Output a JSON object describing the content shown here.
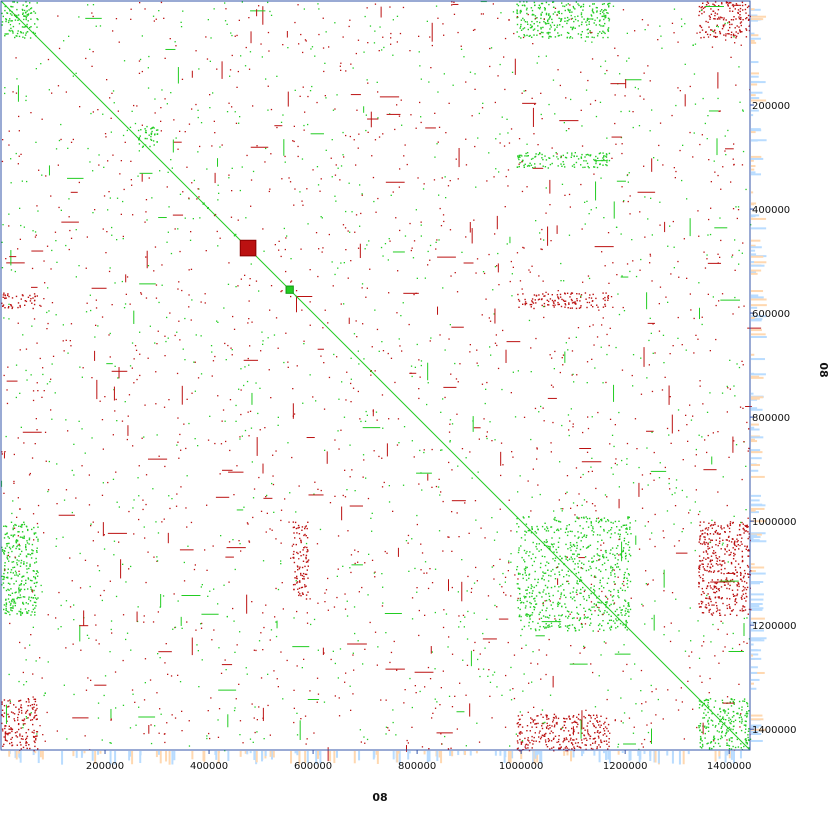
{
  "chart_data": {
    "type": "scatter",
    "title": "",
    "xlabel": "08",
    "ylabel": "08",
    "xlim": [
      0,
      1440000
    ],
    "ylim": [
      0,
      1440000
    ],
    "x_ticks": [
      "200000",
      "400000",
      "600000",
      "800000",
      "1000000",
      "1200000",
      "1400000"
    ],
    "y_ticks": [
      "200000",
      "400000",
      "600000",
      "800000",
      "1000000",
      "1200000",
      "1400000"
    ],
    "y_axis_side": "right",
    "y_inverted": true,
    "grid": false,
    "legend": "none",
    "colors": {
      "forward": "#22cc22",
      "reverse": "#bb1111",
      "coverage_blue": "#b9dcff",
      "coverage_orange": "#ffd8b0"
    },
    "highlight_blocks": [
      {
        "x": [
          460000,
          490000
        ],
        "y": [
          460000,
          490000
        ],
        "color": "reverse"
      },
      {
        "x": [
          548000,
          562000
        ],
        "y": [
          548000,
          562000
        ],
        "color": "forward"
      }
    ],
    "repeat_blocks": [
      {
        "x": [
          0,
          70000
        ],
        "y": [
          0,
          70000
        ],
        "color": "forward"
      },
      {
        "x": [
          1340000,
          1440000
        ],
        "y": [
          0,
          70000
        ],
        "color": "reverse"
      },
      {
        "x": [
          0,
          70000
        ],
        "y": [
          1340000,
          1440000
        ],
        "color": "reverse"
      },
      {
        "x": [
          1340000,
          1440000
        ],
        "y": [
          1340000,
          1440000
        ],
        "color": "forward"
      },
      {
        "x": [
          260000,
          300000
        ],
        "y": [
          240000,
          280000
        ],
        "color": "forward"
      },
      {
        "x": [
          990000,
          1210000
        ],
        "y": [
          990000,
          1210000
        ],
        "color": "forward"
      },
      {
        "x": [
          990000,
          1170000
        ],
        "y": [
          560000,
          590000
        ],
        "color": "reverse"
      },
      {
        "x": [
          0,
          70000
        ],
        "y": [
          560000,
          590000
        ],
        "color": "reverse"
      },
      {
        "x": [
          0,
          70000
        ],
        "y": [
          1000000,
          1180000
        ],
        "color": "forward"
      },
      {
        "x": [
          1340000,
          1440000
        ],
        "y": [
          1000000,
          1180000
        ],
        "color": "reverse"
      },
      {
        "x": [
          560000,
          590000
        ],
        "y": [
          1000000,
          1150000
        ],
        "color": "reverse"
      },
      {
        "x": [
          990000,
          1170000
        ],
        "y": [
          1370000,
          1440000
        ],
        "color": "reverse"
      },
      {
        "x": [
          990000,
          1170000
        ],
        "y": [
          0,
          70000
        ],
        "color": "forward"
      },
      {
        "x": [
          990000,
          1170000
        ],
        "y": [
          290000,
          320000
        ],
        "color": "forward"
      }
    ]
  }
}
